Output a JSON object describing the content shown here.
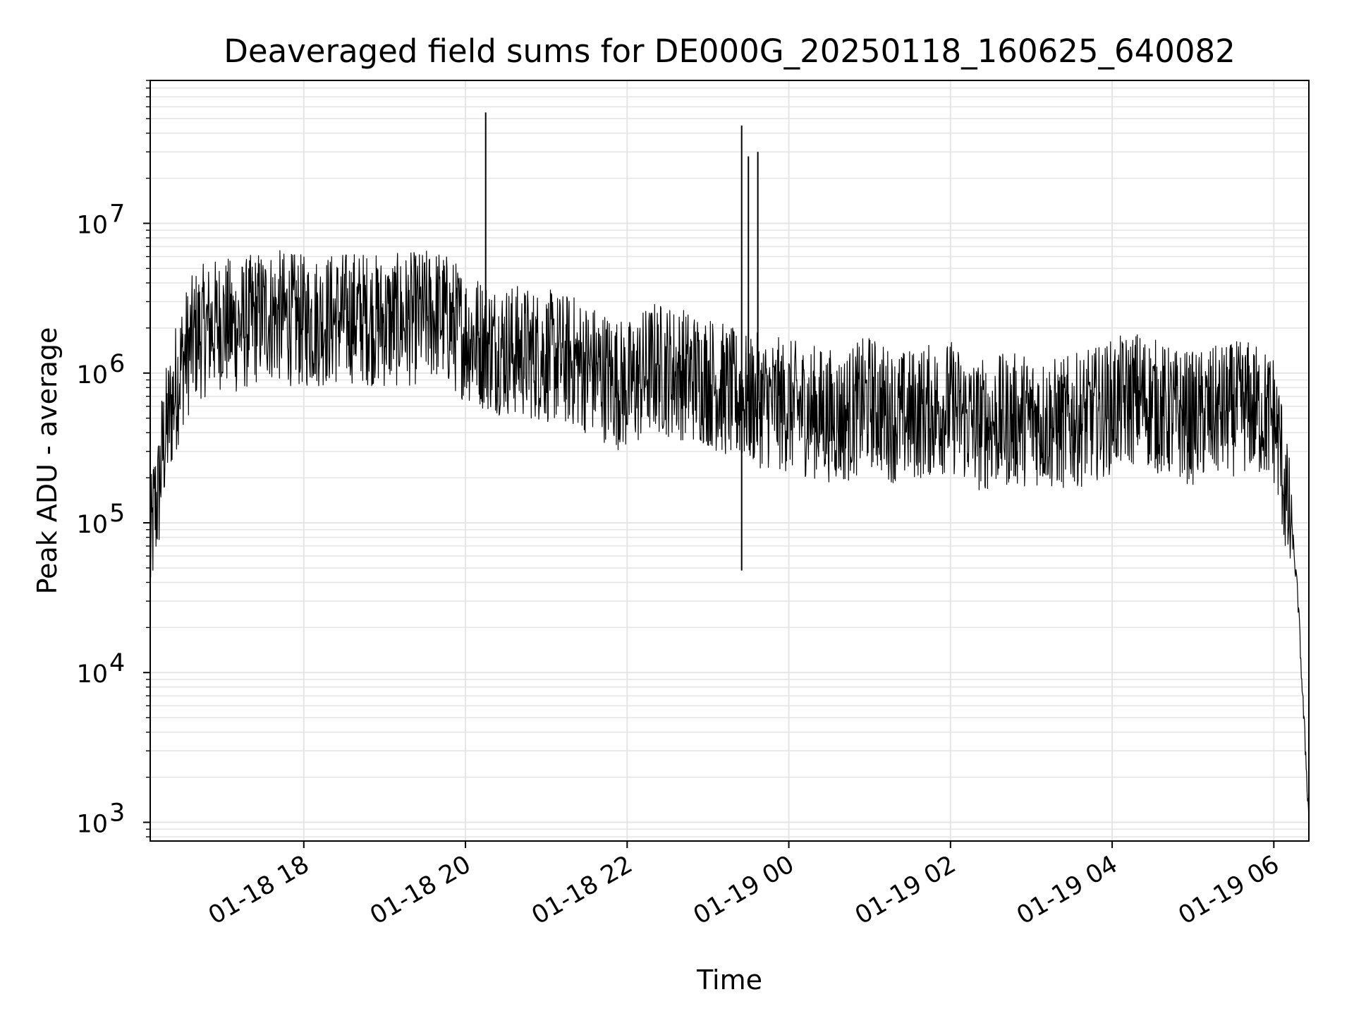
{
  "chart_data": {
    "type": "line",
    "title": "Deaveraged field sums for DE000G_20250118_160625_640082",
    "xlabel": "Time",
    "ylabel": "Peak ADU - average",
    "y_scale": "log",
    "ylim": [
      750,
      90000000
    ],
    "xlim": [
      "2025-01-18 16:06",
      "2025-01-19 06:26"
    ],
    "grid": true,
    "line_color": "#000000",
    "grid_color": "#e5e5e5",
    "x_ticks": [
      {
        "value": "2025-01-18 18:00",
        "label": "01-18 18"
      },
      {
        "value": "2025-01-18 20:00",
        "label": "01-18 20"
      },
      {
        "value": "2025-01-18 22:00",
        "label": "01-18 22"
      },
      {
        "value": "2025-01-19 00:00",
        "label": "01-19 00"
      },
      {
        "value": "2025-01-19 02:00",
        "label": "01-19 02"
      },
      {
        "value": "2025-01-19 04:00",
        "label": "01-19 04"
      },
      {
        "value": "2025-01-19 06:00",
        "label": "01-19 06"
      }
    ],
    "y_ticks": [
      {
        "value": 1000,
        "base": "10",
        "exp": "3"
      },
      {
        "value": 10000,
        "base": "10",
        "exp": "4"
      },
      {
        "value": 100000,
        "base": "10",
        "exp": "5"
      },
      {
        "value": 1000000,
        "base": "10",
        "exp": "6"
      },
      {
        "value": 10000000,
        "base": "10",
        "exp": "7"
      }
    ],
    "series": [
      {
        "x": [
          "2025-01-18 16:06",
          "2025-01-18 16:09",
          "2025-01-18 16:12",
          "2025-01-18 16:15",
          "2025-01-18 16:20",
          "2025-01-18 16:25",
          "2025-01-18 16:30",
          "2025-01-18 16:40",
          "2025-01-18 16:50",
          "2025-01-18 17:00",
          "2025-01-18 17:10",
          "2025-01-18 17:20",
          "2025-01-18 17:30",
          "2025-01-18 17:40",
          "2025-01-18 17:50",
          "2025-01-18 18:00",
          "2025-01-18 18:20",
          "2025-01-18 18:40",
          "2025-01-18 19:00",
          "2025-01-18 19:20",
          "2025-01-18 19:40",
          "2025-01-18 20:00",
          "2025-01-18 20:20",
          "2025-01-18 20:40",
          "2025-01-18 21:00",
          "2025-01-18 21:20",
          "2025-01-18 21:40",
          "2025-01-18 22:00",
          "2025-01-18 22:20",
          "2025-01-18 22:40",
          "2025-01-18 23:00",
          "2025-01-18 23:20",
          "2025-01-18 23:40",
          "2025-01-19 00:00",
          "2025-01-19 00:20",
          "2025-01-19 00:40",
          "2025-01-19 01:00",
          "2025-01-19 01:20",
          "2025-01-19 01:40",
          "2025-01-19 02:00",
          "2025-01-19 02:20",
          "2025-01-19 02:40",
          "2025-01-19 03:00",
          "2025-01-19 03:20",
          "2025-01-19 03:40",
          "2025-01-19 04:00",
          "2025-01-19 04:20",
          "2025-01-19 04:40",
          "2025-01-19 05:00",
          "2025-01-19 05:20",
          "2025-01-19 05:40",
          "2025-01-19 06:00",
          "2025-01-19 06:05",
          "2025-01-19 06:10",
          "2025-01-19 06:14",
          "2025-01-19 06:18",
          "2025-01-19 06:21",
          "2025-01-19 06:24",
          "2025-01-19 06:26"
        ],
        "y": [
          60000,
          120000,
          150000,
          300000,
          500000,
          800000,
          1200000,
          1800000,
          2000000,
          2200000,
          2000000,
          2200000,
          2500000,
          2400000,
          2300000,
          2200000,
          2300000,
          2400000,
          2200000,
          2300000,
          2500000,
          1800000,
          1500000,
          1400000,
          1300000,
          1200000,
          1000000,
          800000,
          1100000,
          1000000,
          900000,
          700000,
          650000,
          600000,
          550000,
          500000,
          650000,
          500000,
          550000,
          600000,
          450000,
          480000,
          500000,
          450000,
          500000,
          600000,
          700000,
          550000,
          500000,
          550000,
          600000,
          500000,
          300000,
          120000,
          80000,
          30000,
          8000,
          2500,
          1000
        ]
      }
    ],
    "spikes": [
      {
        "x": "2025-01-18 20:15",
        "y": 55000000
      },
      {
        "x": "2025-01-18 23:25",
        "y": 45000000
      },
      {
        "x": "2025-01-18 23:30",
        "y": 28000000
      },
      {
        "x": "2025-01-18 23:37",
        "y": 30000000
      },
      {
        "x": "2025-01-18 23:25",
        "y": 48000,
        "dip": true
      }
    ]
  }
}
